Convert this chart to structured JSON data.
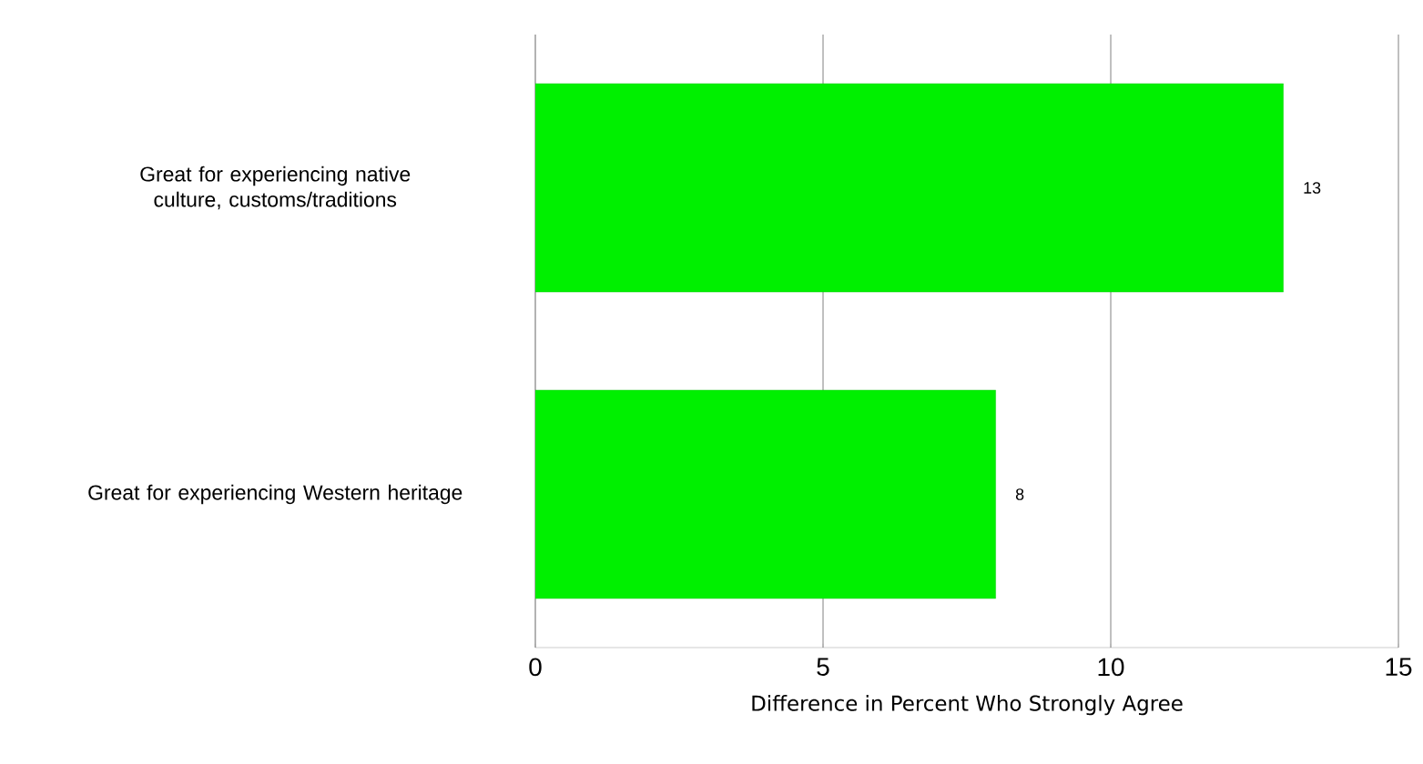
{
  "chart_data": {
    "type": "bar",
    "orientation": "horizontal",
    "xlabel": "Difference in Percent Who Strongly Agree",
    "categories": [
      "Great for experiencing native culture, customs/traditions",
      "Great for experiencing Western heritage"
    ],
    "values": [
      13,
      8
    ],
    "color": "#00f000",
    "xlim": [
      0,
      15
    ],
    "xticks": [
      0,
      5,
      10,
      15
    ],
    "grid": "x",
    "data_labels": true
  }
}
